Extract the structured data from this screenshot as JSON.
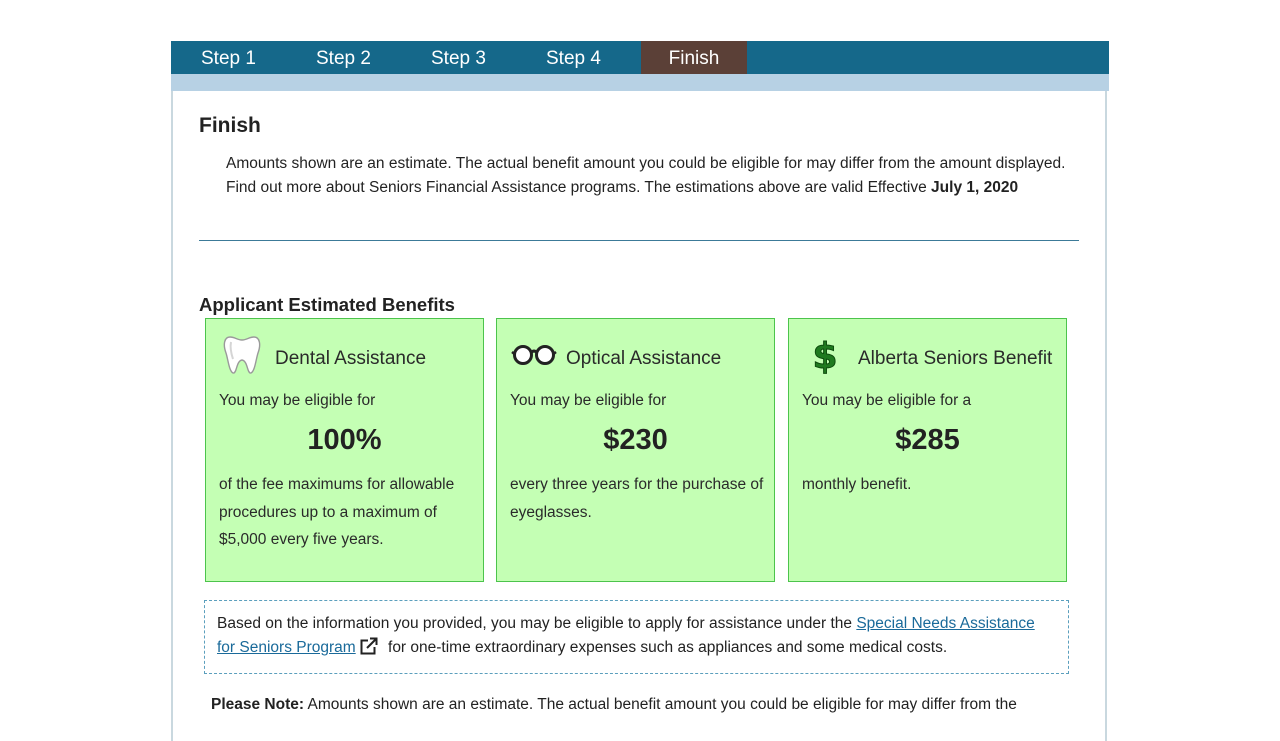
{
  "tabs": {
    "step1": "Step 1",
    "step2": "Step 2",
    "step3": "Step 3",
    "step4": "Step 4",
    "finish": "Finish"
  },
  "section_title": "Finish",
  "intro": {
    "text": "Amounts shown are an estimate. The actual benefit amount you could be eligible for may differ from the amount displayed. Find out more about Seniors Financial Assistance programs. The estimations above are valid Effective ",
    "date": "July 1, 2020"
  },
  "benefits_heading": "Applicant Estimated Benefits",
  "cards": {
    "dental": {
      "icon": "tooth-icon",
      "title": "Dental Assistance",
      "eligible": "You may be eligible for",
      "amount": "100%",
      "desc": "of the fee maximums for allowable procedures up to a maximum of $5,000 every five years."
    },
    "optical": {
      "icon": "eyeglasses-icon",
      "title": "Optical Assistance",
      "eligible": "You may be eligible for",
      "amount": "$230",
      "desc": "every three years for the purchase of eyeglasses."
    },
    "seniors": {
      "icon": "dollar-sign-icon",
      "title": "Alberta Seniors Benefit",
      "eligible": "You may be eligible for a",
      "amount": "$285",
      "desc": "monthly benefit."
    }
  },
  "notice": {
    "before": "Based on the information you provided, you may be eligible to apply for assistance under the ",
    "link": "Special Needs Assistance for Seniors Program",
    "after": " for one-time extraordinary expenses such as appliances and some medical costs."
  },
  "please_note": {
    "label": "Please Note:",
    "text": " Amounts shown are an estimate. The actual benefit amount you could be eligible for may differ from the"
  },
  "colors": {
    "tab_bar": "#15688a",
    "active_tab": "#5b4037",
    "card_bg": "#c4ffb4",
    "card_border": "#4cc44c",
    "link": "#1a6a9a"
  }
}
